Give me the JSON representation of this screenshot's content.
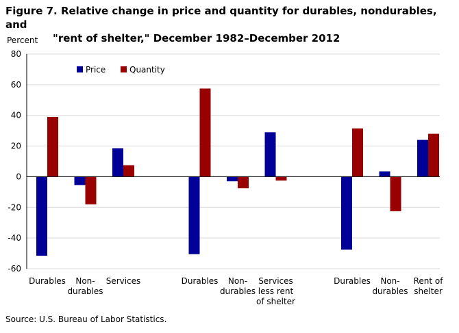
{
  "title_line1": "Figure 7. Relative change in price and quantity for durables, nondurables, and",
  "title_line2": "\"rent of shelter,\" December 1982–December 2012",
  "source": "Source: U.S. Bureau of Labor Statistics.",
  "colors": {
    "price": "#000099",
    "quantity": "#990000",
    "grid": "#d9d9d9"
  },
  "chart_data": {
    "type": "bar",
    "ylabel": "Percent",
    "ylim": [
      -60,
      80
    ],
    "yticks": [
      -60,
      -40,
      -20,
      0,
      20,
      40,
      60,
      80
    ],
    "grid": true,
    "legend_position": "top-left",
    "series_names": [
      "Price",
      "Quantity"
    ],
    "groups": [
      {
        "categories": [
          {
            "label": [
              "Durables"
            ],
            "price": -51.5,
            "quantity": 39
          },
          {
            "label": [
              "Non-",
              "durables"
            ],
            "price": -5.5,
            "quantity": -18
          },
          {
            "label": [
              "Services"
            ],
            "price": 18.5,
            "quantity": 7.5
          }
        ]
      },
      {
        "categories": [
          {
            "label": [
              "Durables"
            ],
            "price": -50.5,
            "quantity": 57.5
          },
          {
            "label": [
              "Non-",
              "durables"
            ],
            "price": -3,
            "quantity": -7.5
          },
          {
            "label": [
              "Services",
              "less rent",
              "of shelter"
            ],
            "price": 29,
            "quantity": -2.5
          }
        ]
      },
      {
        "categories": [
          {
            "label": [
              "Durables"
            ],
            "price": -47.5,
            "quantity": 31.5
          },
          {
            "label": [
              "Non-",
              "durables"
            ],
            "price": 3.5,
            "quantity": -22.5
          },
          {
            "label": [
              "Rent of",
              "shelter"
            ],
            "price": 24,
            "quantity": 28
          }
        ]
      }
    ]
  }
}
